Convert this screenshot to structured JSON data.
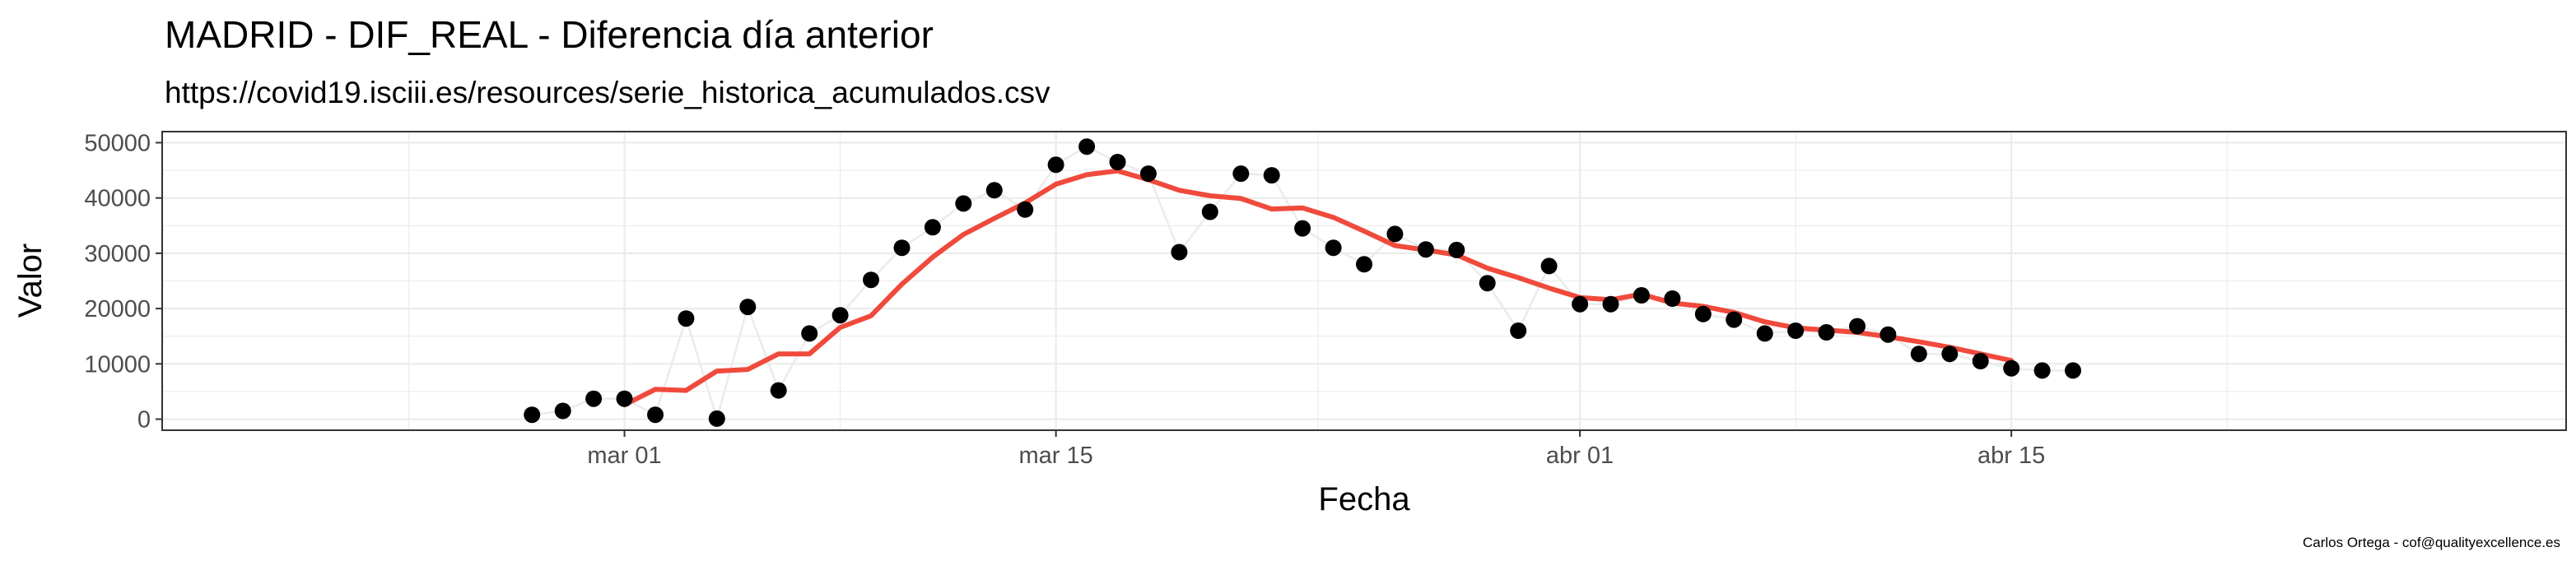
{
  "chart_data": {
    "type": "scatter",
    "title": "MADRID - DIF_REAL - Diferencia día anterior",
    "subtitle": "https://covid19.isciii.es/resources/serie_historica_acumulados.csv",
    "xlabel": "Fecha",
    "ylabel": "Valor",
    "caption": "Carlos Ortega - cof@qualityexcellence.es",
    "x_range": [
      "2020-02-15",
      "2020-05-03"
    ],
    "ylim": [
      -2000,
      52000
    ],
    "x_ticks": [
      {
        "date": "2020-03-01",
        "label": "mar 01"
      },
      {
        "date": "2020-03-15",
        "label": "mar 15"
      },
      {
        "date": "2020-04-01",
        "label": "abr 01"
      },
      {
        "date": "2020-04-15",
        "label": "abr 15"
      }
    ],
    "y_ticks": [
      0,
      10000,
      20000,
      30000,
      40000,
      50000
    ],
    "grid": true,
    "colors": {
      "points": "#000000",
      "connector": "#ebebeb",
      "smooth": "#f04a3c",
      "panel_border": "#333333",
      "grid": "#ebebeb"
    },
    "series": [
      {
        "type": "points",
        "x": [
          "2020-02-27",
          "2020-02-28",
          "2020-02-29",
          "2020-03-01",
          "2020-03-02",
          "2020-03-03",
          "2020-03-04",
          "2020-03-05",
          "2020-03-06",
          "2020-03-07",
          "2020-03-08",
          "2020-03-09",
          "2020-03-10",
          "2020-03-11",
          "2020-03-12",
          "2020-03-13",
          "2020-03-14",
          "2020-03-15",
          "2020-03-16",
          "2020-03-17",
          "2020-03-18",
          "2020-03-19",
          "2020-03-20",
          "2020-03-21",
          "2020-03-22",
          "2020-03-23",
          "2020-03-24",
          "2020-03-25",
          "2020-03-26",
          "2020-03-27",
          "2020-03-28",
          "2020-03-29",
          "2020-03-30",
          "2020-03-31",
          "2020-04-01",
          "2020-04-02",
          "2020-04-03",
          "2020-04-04",
          "2020-04-05",
          "2020-04-06",
          "2020-04-07",
          "2020-04-08",
          "2020-04-09",
          "2020-04-10",
          "2020-04-11",
          "2020-04-12",
          "2020-04-13",
          "2020-04-14",
          "2020-04-15",
          "2020-04-16",
          "2020-04-17"
        ],
        "y": [
          800,
          1500,
          3700,
          3700,
          800,
          18200,
          100,
          20300,
          5200,
          15500,
          18800,
          25200,
          31000,
          34700,
          39000,
          41400,
          37900,
          46000,
          49300,
          46500,
          44400,
          30200,
          37500,
          44400,
          44100,
          34500,
          31000,
          28000,
          33500,
          30700,
          30600,
          24600,
          16000,
          27700,
          20800,
          20800,
          22400,
          21800,
          19000,
          18000,
          15500,
          16000,
          15700,
          16800,
          15300,
          11800,
          11800,
          10500,
          9200,
          8800,
          8800
        ]
      },
      {
        "type": "smooth",
        "x": [
          "2020-03-01",
          "2020-03-02",
          "2020-03-03",
          "2020-03-04",
          "2020-03-05",
          "2020-03-06",
          "2020-03-07",
          "2020-03-08",
          "2020-03-09",
          "2020-03-10",
          "2020-03-11",
          "2020-03-12",
          "2020-03-13",
          "2020-03-14",
          "2020-03-15",
          "2020-03-16",
          "2020-03-17",
          "2020-03-18",
          "2020-03-19",
          "2020-03-20",
          "2020-03-21",
          "2020-03-22",
          "2020-03-23",
          "2020-03-24",
          "2020-03-25",
          "2020-03-26",
          "2020-03-27",
          "2020-03-28",
          "2020-03-29",
          "2020-03-30",
          "2020-03-31",
          "2020-04-01",
          "2020-04-02",
          "2020-04-03",
          "2020-04-04",
          "2020-04-05",
          "2020-04-06",
          "2020-04-07",
          "2020-04-08",
          "2020-04-09",
          "2020-04-10",
          "2020-04-11",
          "2020-04-12",
          "2020-04-13",
          "2020-04-14",
          "2020-04-15"
        ],
        "y": [
          2600,
          5400,
          5200,
          8700,
          9000,
          11800,
          11800,
          16600,
          18700,
          24400,
          29300,
          33400,
          36300,
          39100,
          42500,
          44200,
          44900,
          43300,
          41400,
          40400,
          39900,
          38000,
          38200,
          36500,
          34000,
          31400,
          30600,
          29700,
          27300,
          25600,
          23700,
          22000,
          21600,
          22600,
          21000,
          20400,
          19300,
          17600,
          16500,
          16100,
          15700,
          14900,
          14000,
          13000,
          11800,
          10600
        ]
      }
    ]
  }
}
